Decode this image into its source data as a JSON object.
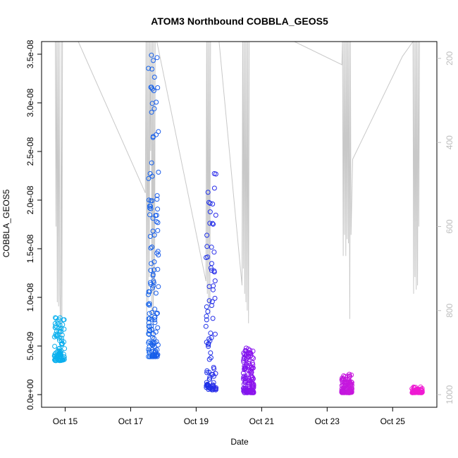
{
  "chart_data": {
    "type": "scatter",
    "title": "ATOM3 Northbound COBBLA_GEOS5",
    "xlabel": "Date",
    "ylabel": "COBBLA_GEOS5",
    "x_ticks": [
      "Oct 15",
      "Oct 17",
      "Oct 19",
      "Oct 21",
      "Oct 23",
      "Oct 25"
    ],
    "x_tick_days": [
      15,
      17,
      19,
      21,
      23,
      25
    ],
    "xlim_days": [
      14.28,
      26.35
    ],
    "y_ticks": [
      0,
      5e-09,
      1e-08,
      1.5e-08,
      2e-08,
      2.5e-08,
      3e-08,
      3.5e-08
    ],
    "y_tick_labels": [
      "0.0e+00",
      "5.0e-09",
      "1.0e-08",
      "1.5e-08",
      "2.0e-08",
      "2.5e-08",
      "3.0e-08",
      "3.5e-08"
    ],
    "ylim": [
      -1.3e-09,
      3.63e-08
    ],
    "right_axis": {
      "label": "",
      "ticks": [
        200,
        400,
        600,
        800,
        1000
      ],
      "range_top_to_bottom": [
        160,
        1030
      ],
      "color": "#bdbdbd"
    },
    "colors": {
      "point_start": "#0ab0ee",
      "point_mid": "#1f2ee8",
      "point_mid2": "#8a14ee",
      "point_end": "#f01ad2",
      "pressure_line": "#c8c8c8"
    },
    "clusters": [
      {
        "day": 14.83,
        "n": 95,
        "y": [
          3.5e-09,
          8e-09
        ]
      },
      {
        "day": 17.7,
        "n": 140,
        "y": [
          3.9e-09,
          3.5e-08
        ]
      },
      {
        "day": 19.45,
        "n": 90,
        "y": [
          5e-10,
          2.35e-08
        ]
      },
      {
        "day": 20.6,
        "n": 140,
        "y": [
          2e-10,
          4.9e-09
        ]
      },
      {
        "day": 23.6,
        "n": 110,
        "y": [
          2e-10,
          2.2e-09
        ]
      },
      {
        "day": 25.75,
        "n": 60,
        "y": [
          2e-10,
          8e-10
        ]
      }
    ],
    "pressure_profile": [
      {
        "day": 14.7,
        "p": 160
      },
      {
        "day": 14.72,
        "p": 600
      },
      {
        "day": 14.74,
        "p": 160
      },
      {
        "day": 14.76,
        "p": 780
      },
      {
        "day": 14.78,
        "p": 160
      },
      {
        "day": 14.8,
        "p": 790
      },
      {
        "day": 14.82,
        "p": 160
      },
      {
        "day": 14.84,
        "p": 760
      },
      {
        "day": 14.86,
        "p": 860
      },
      {
        "day": 14.88,
        "p": 160
      },
      {
        "day": 14.9,
        "p": 870
      },
      {
        "day": 14.92,
        "p": 160
      },
      {
        "day": 15.4,
        "p": 160
      },
      {
        "day": 17.45,
        "p": 520
      },
      {
        "day": 17.47,
        "p": 160
      },
      {
        "day": 17.49,
        "p": 860
      },
      {
        "day": 17.51,
        "p": 160
      },
      {
        "day": 17.53,
        "p": 780
      },
      {
        "day": 17.55,
        "p": 160
      },
      {
        "day": 17.57,
        "p": 720
      },
      {
        "day": 17.59,
        "p": 160
      },
      {
        "day": 17.61,
        "p": 420
      },
      {
        "day": 17.63,
        "p": 160
      },
      {
        "day": 17.65,
        "p": 820
      },
      {
        "day": 17.67,
        "p": 160
      },
      {
        "day": 17.69,
        "p": 900
      },
      {
        "day": 17.71,
        "p": 160
      },
      {
        "day": 17.73,
        "p": 760
      },
      {
        "day": 17.75,
        "p": 160
      },
      {
        "day": 17.77,
        "p": 160
      },
      {
        "day": 17.8,
        "p": 160
      },
      {
        "day": 19.3,
        "p": 730
      },
      {
        "day": 19.32,
        "p": 160
      },
      {
        "day": 19.34,
        "p": 760
      },
      {
        "day": 19.36,
        "p": 160
      },
      {
        "day": 19.38,
        "p": 790
      },
      {
        "day": 19.4,
        "p": 160
      },
      {
        "day": 19.42,
        "p": 810
      },
      {
        "day": 19.44,
        "p": 160
      },
      {
        "day": 19.46,
        "p": 160
      },
      {
        "day": 19.7,
        "p": 160
      },
      {
        "day": 20.4,
        "p": 740
      },
      {
        "day": 20.42,
        "p": 160
      },
      {
        "day": 20.44,
        "p": 700
      },
      {
        "day": 20.46,
        "p": 160
      },
      {
        "day": 20.48,
        "p": 760
      },
      {
        "day": 20.5,
        "p": 160
      },
      {
        "day": 20.52,
        "p": 780
      },
      {
        "day": 20.54,
        "p": 160
      },
      {
        "day": 20.56,
        "p": 800
      },
      {
        "day": 20.58,
        "p": 160
      },
      {
        "day": 20.6,
        "p": 830
      },
      {
        "day": 20.62,
        "p": 160
      },
      {
        "day": 20.66,
        "p": 160
      },
      {
        "day": 20.7,
        "p": 160
      },
      {
        "day": 22.0,
        "p": 160
      },
      {
        "day": 23.45,
        "p": 215
      },
      {
        "day": 23.47,
        "p": 160
      },
      {
        "day": 23.49,
        "p": 670
      },
      {
        "day": 23.51,
        "p": 160
      },
      {
        "day": 23.53,
        "p": 620
      },
      {
        "day": 23.55,
        "p": 160
      },
      {
        "day": 23.57,
        "p": 670
      },
      {
        "day": 23.59,
        "p": 160
      },
      {
        "day": 23.61,
        "p": 630
      },
      {
        "day": 23.63,
        "p": 160
      },
      {
        "day": 23.65,
        "p": 640
      },
      {
        "day": 23.67,
        "p": 160
      },
      {
        "day": 23.69,
        "p": 820
      },
      {
        "day": 23.71,
        "p": 160
      },
      {
        "day": 23.73,
        "p": 620
      },
      {
        "day": 23.78,
        "p": 440
      },
      {
        "day": 25.3,
        "p": 195
      },
      {
        "day": 25.62,
        "p": 160
      },
      {
        "day": 25.64,
        "p": 760
      },
      {
        "day": 25.66,
        "p": 160
      },
      {
        "day": 25.68,
        "p": 720
      },
      {
        "day": 25.7,
        "p": 160
      },
      {
        "day": 25.72,
        "p": 750
      },
      {
        "day": 25.74,
        "p": 160
      },
      {
        "day": 25.76,
        "p": 740
      },
      {
        "day": 25.78,
        "p": 160
      },
      {
        "day": 25.8,
        "p": 600
      },
      {
        "day": 25.82,
        "p": 160
      }
    ]
  }
}
